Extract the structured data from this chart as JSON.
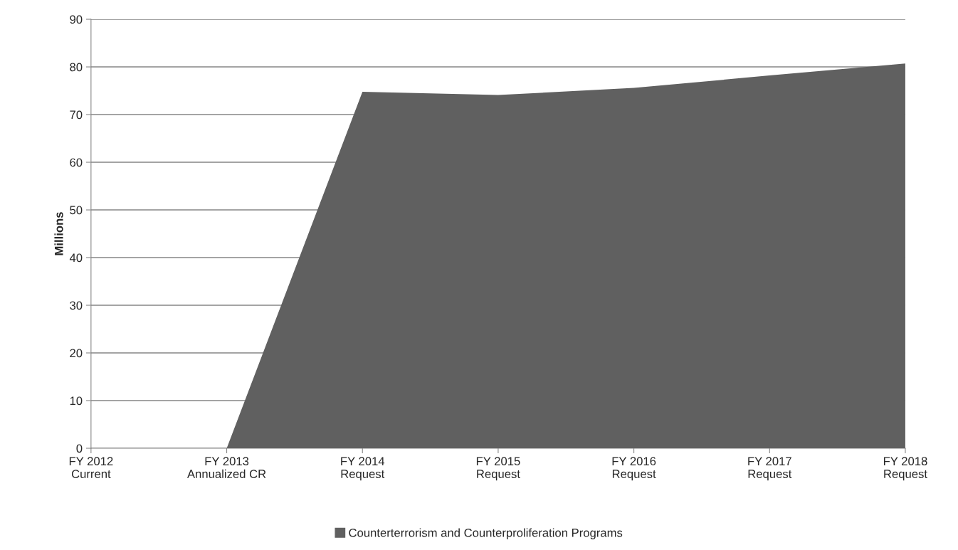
{
  "chart_data": {
    "type": "area",
    "ylabel": "Millions",
    "categories": [
      "FY 2012\nCurrent",
      "FY 2013\nAnnualized CR",
      "FY 2014\nRequest",
      "FY 2015\nRequest",
      "FY 2016\nRequest",
      "FY 2017\nRequest",
      "FY 2018\nRequest"
    ],
    "series": [
      {
        "name": "Counterterrorism and Counterproliferation Programs",
        "color": "#606060",
        "values": [
          0,
          0,
          74.8,
          74.1,
          75.6,
          78.2,
          80.7
        ]
      }
    ],
    "ylim": [
      0,
      90
    ],
    "yticks": [
      0,
      10,
      20,
      30,
      40,
      50,
      60,
      70,
      80,
      90
    ],
    "grid": "y",
    "legend": "bottom"
  }
}
